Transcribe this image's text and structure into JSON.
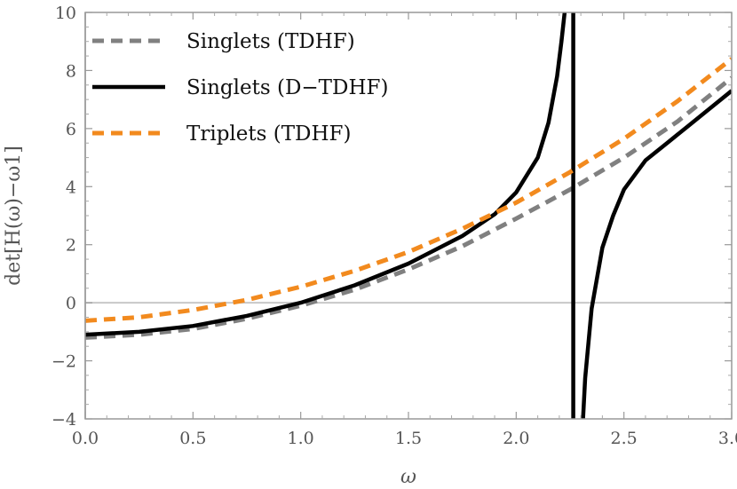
{
  "chart_data": {
    "type": "line",
    "xlabel": "ω",
    "ylabel": "det[H(ω)−ω1]",
    "xlim": [
      0,
      3
    ],
    "ylim": [
      -4,
      10
    ],
    "x_ticks": [
      "0.0",
      "0.5",
      "1.0",
      "1.5",
      "2.0",
      "2.5",
      "3.0"
    ],
    "y_ticks": [
      "−4",
      "−2",
      "0",
      "2",
      "4",
      "6",
      "8",
      "10"
    ],
    "legend_position": "top-left",
    "zero_line": true,
    "series": [
      {
        "name": "Singlets (TDHF)",
        "style": "dashed",
        "color": "#808080",
        "x": [
          0.0,
          0.25,
          0.5,
          0.75,
          1.0,
          1.25,
          1.5,
          1.75,
          2.0,
          2.25,
          2.5,
          2.75,
          3.0
        ],
        "y": [
          -1.2,
          -1.1,
          -0.9,
          -0.55,
          -0.1,
          0.45,
          1.15,
          1.95,
          2.9,
          3.9,
          5.0,
          6.25,
          7.75
        ]
      },
      {
        "name": "Singlets (D−TDHF)",
        "style": "solid",
        "color": "#000000",
        "segments": [
          {
            "x": [
              0.0,
              0.25,
              0.5,
              0.75,
              1.0,
              1.25,
              1.5,
              1.75,
              1.9,
              2.0,
              2.1,
              2.15,
              2.19,
              2.21,
              2.225
            ],
            "y": [
              -1.1,
              -1.0,
              -0.8,
              -0.45,
              0.0,
              0.6,
              1.35,
              2.3,
              3.05,
              3.8,
              5.0,
              6.2,
              7.8,
              9.0,
              10.0
            ]
          },
          {
            "x": [
              2.265,
              2.265
            ],
            "y": [
              10.0,
              -4.0
            ]
          },
          {
            "x": [
              2.31,
              2.32,
              2.35,
              2.4,
              2.45,
              2.5,
              2.6,
              2.7,
              2.8,
              2.9,
              3.0
            ],
            "y": [
              -4.0,
              -2.6,
              -0.2,
              1.9,
              3.0,
              3.9,
              4.9,
              5.5,
              6.1,
              6.7,
              7.3
            ]
          }
        ]
      },
      {
        "name": "Triplets (TDHF)",
        "style": "dashed",
        "color": "#F28A1E",
        "x": [
          0.0,
          0.25,
          0.5,
          0.75,
          1.0,
          1.25,
          1.5,
          1.75,
          2.0,
          2.25,
          2.5,
          2.75,
          3.0
        ],
        "y": [
          -0.62,
          -0.5,
          -0.25,
          0.1,
          0.55,
          1.1,
          1.75,
          2.55,
          3.45,
          4.5,
          5.65,
          6.95,
          8.4
        ]
      }
    ]
  }
}
